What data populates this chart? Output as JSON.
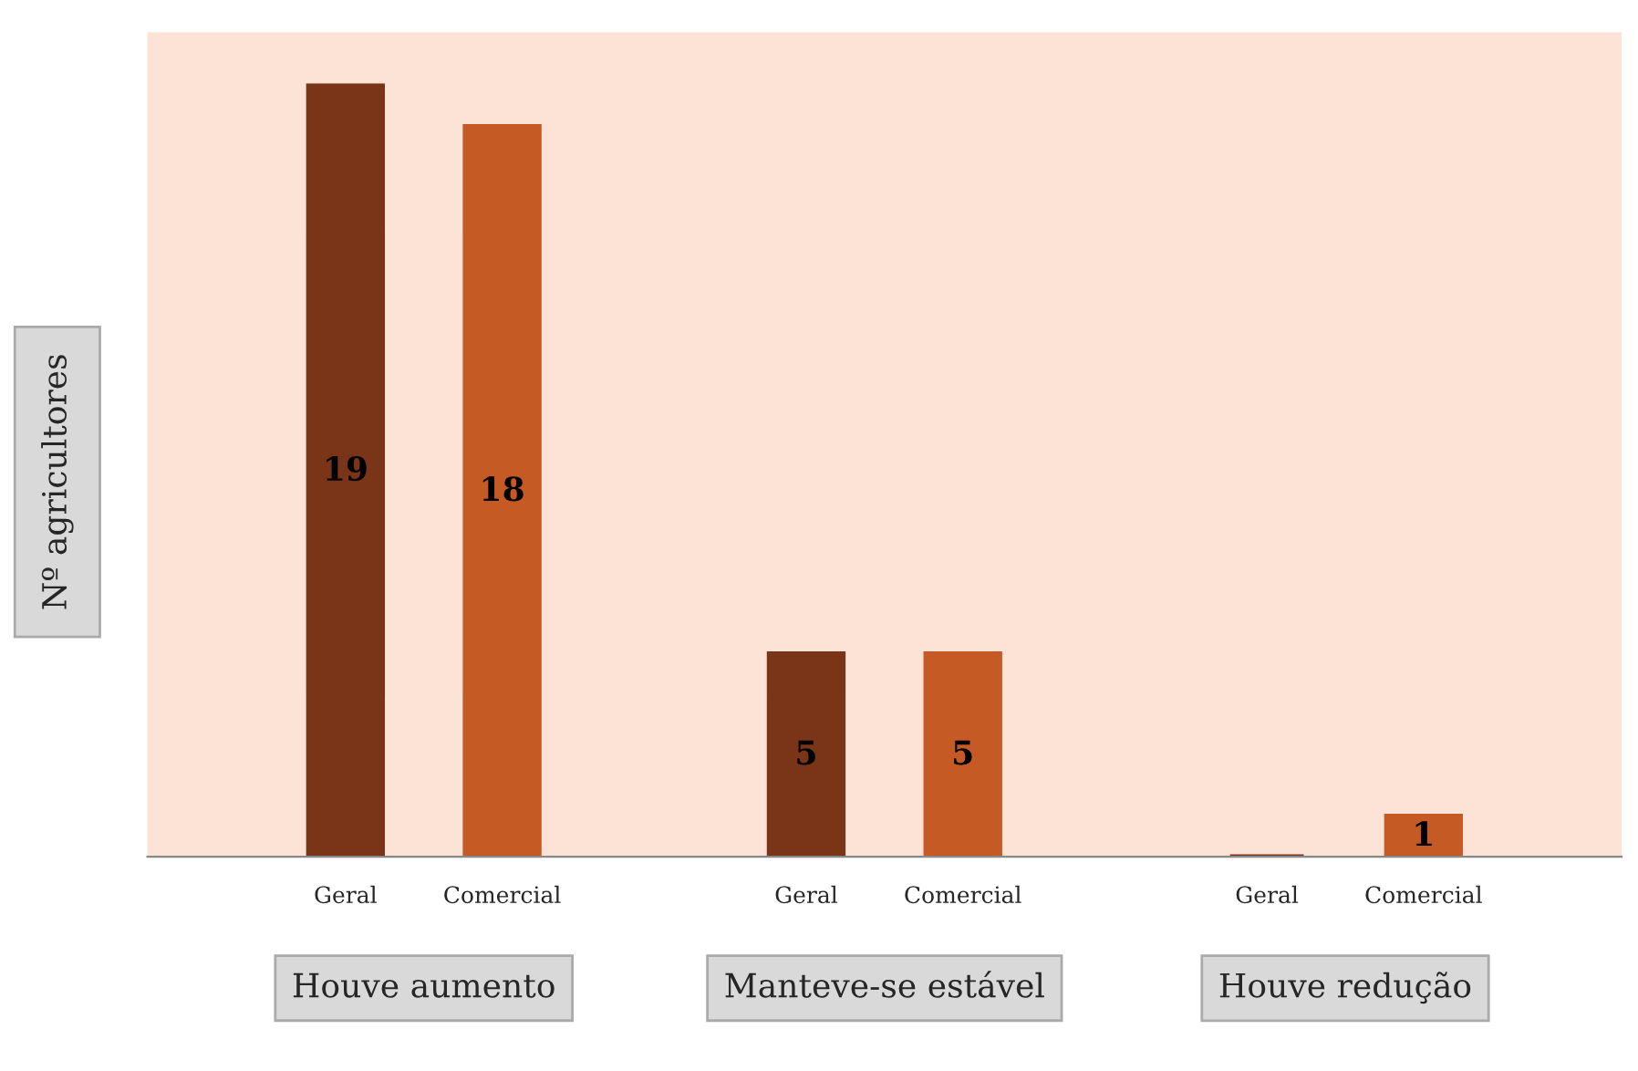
{
  "chart_data": {
    "type": "bar",
    "ylabel": "Nº agricultores",
    "categories": [
      "Houve aumento",
      "Manteve-se estável",
      "Houve redução"
    ],
    "series": [
      {
        "name": "Geral",
        "color": "#7a3518",
        "values": [
          19,
          5,
          0
        ],
        "value_labels": [
          "19",
          "5",
          null
        ]
      },
      {
        "name": "Comercial",
        "color": "#c55a24",
        "values": [
          18,
          5,
          1
        ],
        "value_labels": [
          "18",
          "5",
          "1"
        ]
      }
    ]
  }
}
